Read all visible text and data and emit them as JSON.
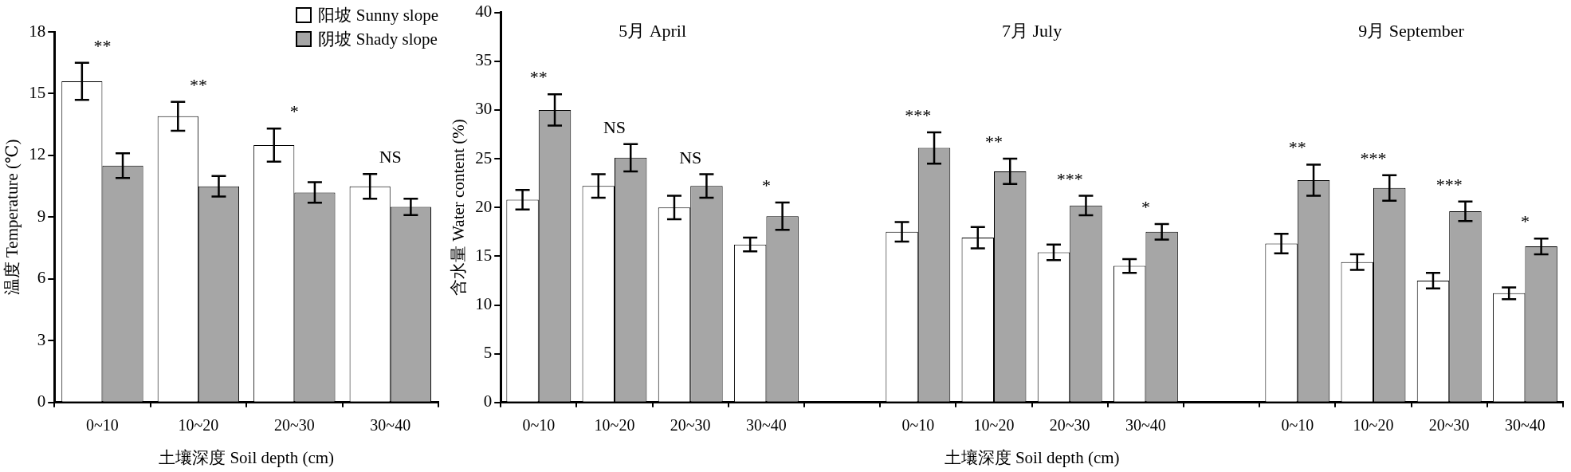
{
  "chart_data": [
    {
      "type": "bar",
      "xlabel": "土壤深度 Soil depth (cm)",
      "ylabel": "温度 Temperature (℃)",
      "categories": [
        "0~10",
        "10~20",
        "20~30",
        "30~40"
      ],
      "series": [
        {
          "name": "阳坡 Sunny slope",
          "color": "#ffffff",
          "values": [
            15.6,
            13.9,
            12.5,
            10.5
          ],
          "errors": [
            0.9,
            0.7,
            0.8,
            0.6
          ]
        },
        {
          "name": "阴坡 Shady slope",
          "color": "#a6a6a6",
          "values": [
            11.5,
            10.5,
            10.2,
            9.5
          ],
          "errors": [
            0.6,
            0.5,
            0.5,
            0.4
          ]
        }
      ],
      "ylim": [
        0,
        18
      ],
      "yticks": [
        0,
        3,
        6,
        9,
        12,
        15,
        18
      ],
      "grid": false,
      "legend": "top right",
      "annotations": [
        "**",
        "**",
        "*",
        "NS"
      ]
    },
    {
      "type": "bar",
      "xlabel": "土壤深度 Soil depth (cm)",
      "ylabel": "含水量 Water content (%)",
      "categories": [
        "0~10",
        "10~20",
        "20~30",
        "30~40",
        null,
        "0~10",
        "10~20",
        "20~30",
        "30~40",
        null,
        "0~10",
        "10~20",
        "20~30",
        "30~40"
      ],
      "series": [
        {
          "color": "#ffffff",
          "values": [
            20.8,
            22.2,
            20.0,
            16.2,
            null,
            17.5,
            16.9,
            15.4,
            14.0,
            null,
            16.3,
            14.4,
            12.5,
            11.2
          ],
          "errors": [
            1.0,
            1.2,
            1.2,
            0.7,
            null,
            1.0,
            1.1,
            0.8,
            0.7,
            null,
            1.0,
            0.8,
            0.8,
            0.6
          ]
        },
        {
          "color": "#a6a6a6",
          "values": [
            30.0,
            25.1,
            22.2,
            19.1,
            null,
            26.1,
            23.7,
            20.2,
            17.5,
            null,
            22.8,
            22.0,
            19.6,
            16.0
          ],
          "errors": [
            1.6,
            1.4,
            1.2,
            1.4,
            null,
            1.6,
            1.3,
            1.0,
            0.8,
            null,
            1.6,
            1.3,
            1.0,
            0.8
          ]
        }
      ],
      "ylim": [
        0,
        40
      ],
      "yticks": [
        0,
        5,
        10,
        15,
        20,
        25,
        30,
        35,
        40
      ],
      "grid": false,
      "legend": false,
      "annotations": [
        "5月 April",
        "7月 July",
        "9月 September",
        "**",
        "NS",
        "NS",
        "*",
        "***",
        "**",
        "***",
        "*",
        "**",
        "***",
        "***",
        "*"
      ]
    }
  ]
}
